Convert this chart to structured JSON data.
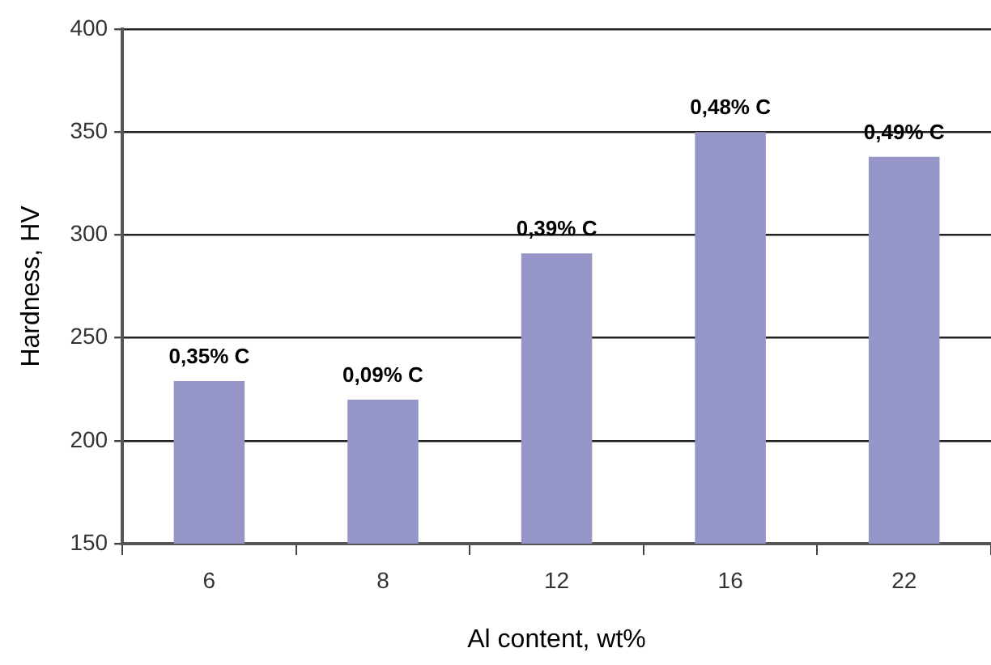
{
  "chart_data": {
    "type": "bar",
    "xlabel": "Al content, wt%",
    "ylabel": "Hardness, HV",
    "categories": [
      "6",
      "8",
      "12",
      "16",
      "22"
    ],
    "values": [
      229,
      220,
      291,
      350,
      338
    ],
    "annotations": [
      {
        "text": "0,35% C",
        "x": "6",
        "y": 229
      },
      {
        "text": "0,09% C",
        "x": "8",
        "y": 220
      },
      {
        "text": "0,39% C",
        "x": "12",
        "y": 291
      },
      {
        "text": "0,48% C",
        "x": "16",
        "y": 350
      },
      {
        "text": "0,49% C",
        "x": "22",
        "y": 338
      }
    ],
    "color": "#9595c8",
    "ylim": [
      150,
      400
    ],
    "yticks": [
      150,
      200,
      250,
      300,
      350,
      400
    ],
    "grid": "y",
    "legend": false
  }
}
